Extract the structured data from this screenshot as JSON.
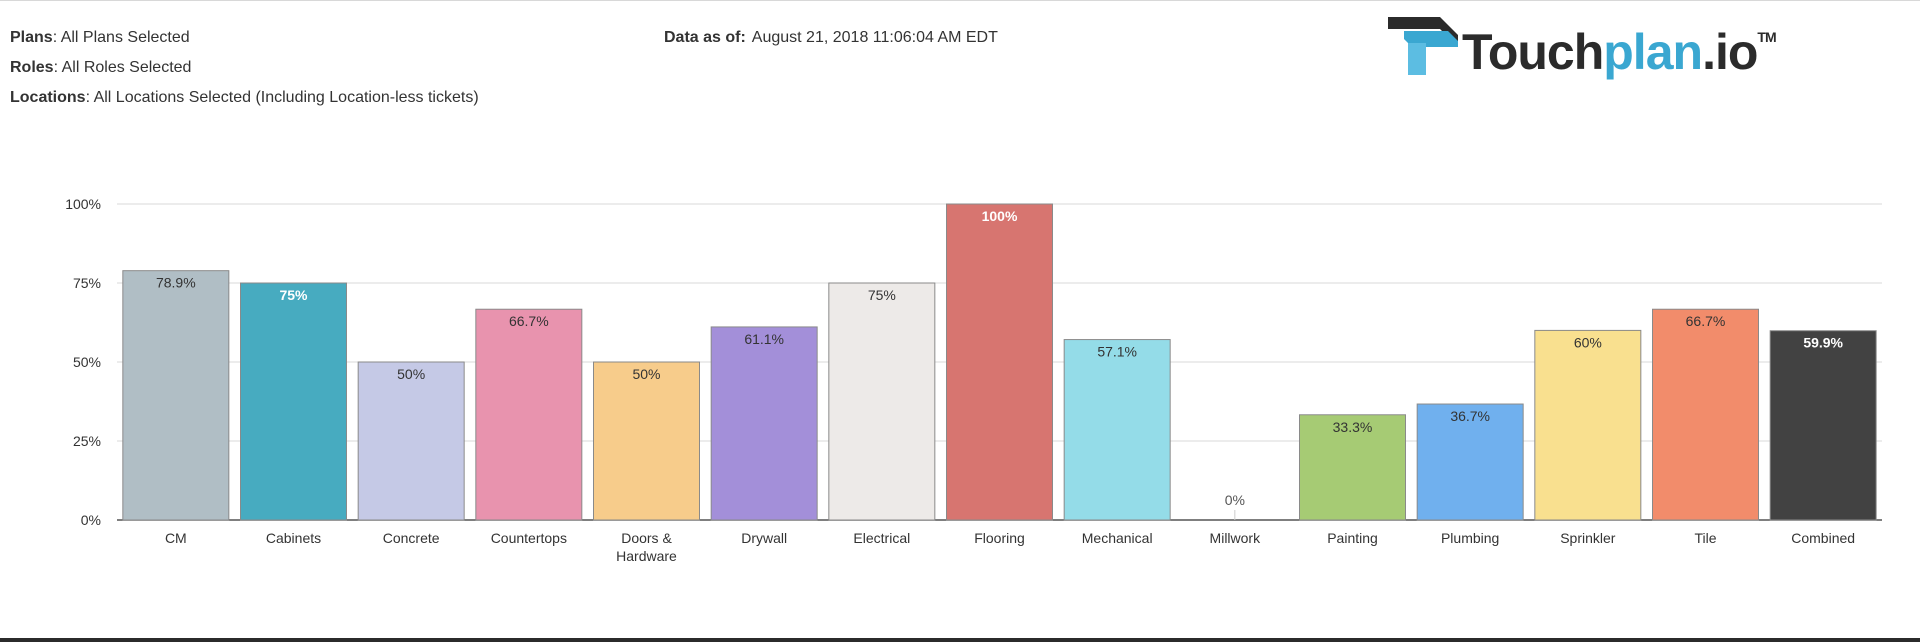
{
  "filters": {
    "plans_label": "Plans",
    "plans_value": ": All Plans Selected",
    "roles_label": "Roles",
    "roles_value": ": All Roles Selected",
    "locations_label": "Locations",
    "locations_value": ": All Locations Selected (Including Location-less tickets)"
  },
  "data_as_of": {
    "label": "Data as of:",
    "value": "August 21, 2018 11:06:04 AM EDT"
  },
  "logo": {
    "part1": "Touch",
    "part2": "plan",
    "part3": ".io",
    "tm": "TM",
    "colors": {
      "dark": "#2b2b2b",
      "blue": "#3aa7d1"
    }
  },
  "chart_data": {
    "type": "bar",
    "categories": [
      "CM",
      "Cabinets",
      "Concrete",
      "Countertops",
      "Doors & Hardware",
      "Drywall",
      "Electrical",
      "Flooring",
      "Mechanical",
      "Millwork",
      "Painting",
      "Plumbing",
      "Sprinkler",
      "Tile",
      "Combined"
    ],
    "category_lines": [
      [
        "CM"
      ],
      [
        "Cabinets"
      ],
      [
        "Concrete"
      ],
      [
        "Countertops"
      ],
      [
        "Doors &",
        "Hardware"
      ],
      [
        "Drywall"
      ],
      [
        "Electrical"
      ],
      [
        "Flooring"
      ],
      [
        "Mechanical"
      ],
      [
        "Millwork"
      ],
      [
        "Painting"
      ],
      [
        "Plumbing"
      ],
      [
        "Sprinkler"
      ],
      [
        "Tile"
      ],
      [
        "Combined"
      ]
    ],
    "values": [
      78.9,
      75,
      50,
      66.7,
      50,
      61.1,
      75,
      100,
      57.1,
      0,
      33.3,
      36.7,
      60,
      66.7,
      59.9
    ],
    "value_labels": [
      "78.9%",
      "75%",
      "50%",
      "66.7%",
      "50%",
      "61.1%",
      "75%",
      "100%",
      "57.1%",
      "0%",
      "33.3%",
      "36.7%",
      "60%",
      "66.7%",
      "59.9%"
    ],
    "colors": [
      "#b0bec5",
      "#47abc0",
      "#c5c9e6",
      "#e893ae",
      "#f7cc8b",
      "#a38fd9",
      "#edeae8",
      "#d77570",
      "#94dce8",
      "#ffffff",
      "#a6cb74",
      "#70b0ee",
      "#f9e08f",
      "#f28c6b",
      "#424242"
    ],
    "label_colors": [
      "#333333",
      "#ffffff",
      "#333333",
      "#333333",
      "#333333",
      "#333333",
      "#333333",
      "#ffffff",
      "#333333",
      "#555555",
      "#333333",
      "#333333",
      "#333333",
      "#333333",
      "#ffffff"
    ],
    "label_bold": [
      false,
      true,
      false,
      false,
      false,
      false,
      false,
      true,
      false,
      false,
      false,
      false,
      false,
      false,
      true
    ],
    "y_ticks": [
      "0%",
      "25%",
      "50%",
      "75%",
      "100%"
    ],
    "y_tick_values": [
      0,
      25,
      50,
      75,
      100
    ],
    "ylim": [
      0,
      100
    ],
    "grid": true,
    "title": "",
    "xlabel": "",
    "ylabel": ""
  }
}
